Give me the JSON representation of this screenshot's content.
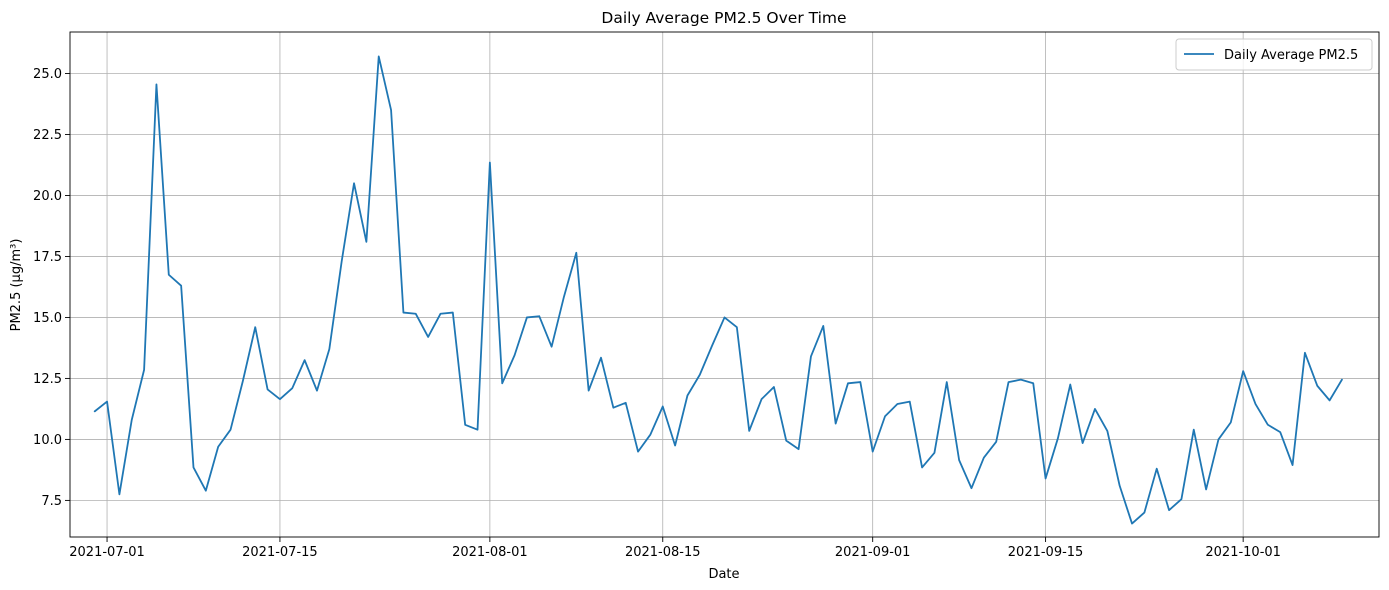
{
  "chart_data": {
    "type": "line",
    "title": "Daily Average PM2.5 Over Time",
    "xlabel": "Date",
    "ylabel": "PM2.5 (µg/m³)",
    "x_tick_labels": [
      "2021-07-01",
      "2021-07-15",
      "2021-08-01",
      "2021-08-15",
      "2021-09-01",
      "2021-09-15",
      "2021-10-01"
    ],
    "y_tick_labels": [
      "7.5",
      "10.0",
      "12.5",
      "15.0",
      "17.5",
      "20.0",
      "22.5",
      "25.0"
    ],
    "x_range": [
      "2021-06-28",
      "2021-10-12"
    ],
    "ylim": [
      6.0,
      26.7
    ],
    "grid": true,
    "legend_position": "top-right",
    "colors": {
      "series": "#1f77b4",
      "grid": "#b0b0b0"
    },
    "series": [
      {
        "name": "Daily Average PM2.5",
        "x_start": "2021-06-30",
        "x_step_days": 1,
        "values": [
          11.15,
          11.55,
          7.75,
          10.8,
          12.85,
          24.55,
          16.75,
          16.3,
          8.85,
          7.9,
          9.7,
          10.4,
          12.4,
          14.6,
          12.05,
          11.65,
          12.1,
          13.25,
          12.0,
          13.7,
          17.3,
          20.5,
          18.1,
          25.7,
          23.5,
          15.2,
          15.15,
          14.2,
          15.15,
          15.2,
          10.6,
          10.4,
          21.35,
          12.3,
          13.45,
          15.0,
          15.05,
          13.8,
          15.85,
          17.65,
          12.0,
          13.35,
          11.3,
          11.5,
          9.5,
          10.2,
          11.35,
          9.75,
          11.8,
          12.65,
          13.85,
          15.0,
          14.6,
          10.35,
          11.65,
          12.15,
          9.95,
          9.6,
          13.4,
          14.65,
          10.65,
          12.3,
          12.35,
          9.5,
          10.95,
          11.45,
          11.55,
          8.85,
          9.45,
          12.35,
          9.15,
          8.0,
          9.25,
          9.9,
          12.35,
          12.45,
          12.3,
          8.4,
          10.05,
          12.25,
          9.85,
          11.25,
          10.35,
          8.1,
          6.55,
          7.0,
          8.8,
          7.1,
          7.55,
          10.4,
          7.95,
          10.0,
          10.7,
          12.8,
          11.45,
          10.6,
          10.3,
          8.95,
          13.55,
          12.2,
          11.6,
          12.45
        ]
      }
    ]
  }
}
